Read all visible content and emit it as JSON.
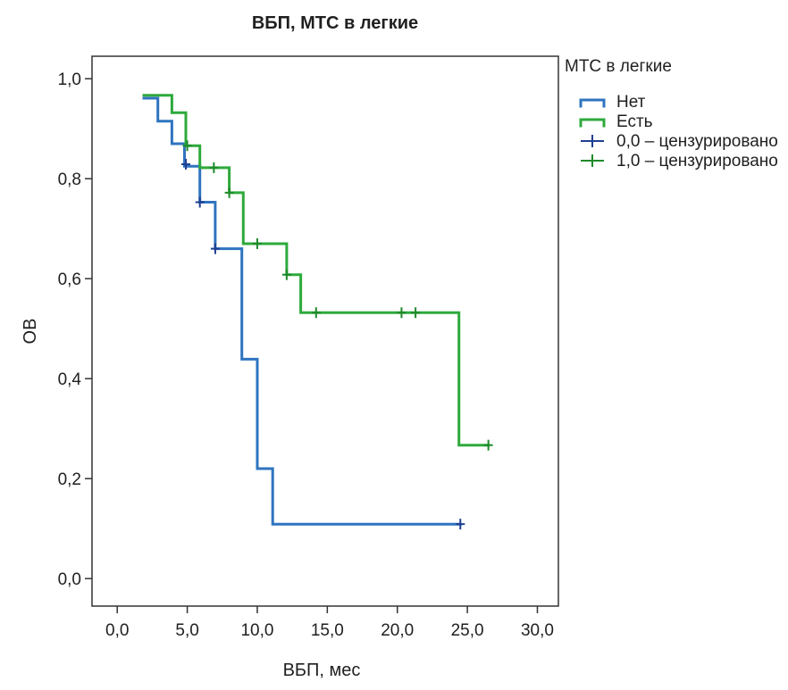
{
  "chart_data": {
    "type": "line",
    "subtype": "kaplan-meier",
    "title": "ВБП, МТС в легкие",
    "xlabel": "ВБП, мес",
    "ylabel": "ОВ",
    "xlim": [
      -1.8,
      31.5
    ],
    "ylim": [
      -0.055,
      1.045
    ],
    "x_ticks": [
      0,
      5,
      10,
      15,
      20,
      25,
      30
    ],
    "y_ticks": [
      0,
      0.2,
      0.4,
      0.6,
      0.8,
      1.0
    ],
    "x_tick_labels": [
      "0,0",
      "5,0",
      "10,0",
      "15,0",
      "20,0",
      "25,0",
      "30,0"
    ],
    "y_tick_labels": [
      "0,0",
      "0,2",
      "0,4",
      "0,6",
      "0,8",
      "1,0"
    ],
    "grid": false,
    "legend": {
      "title": "МТС в легкие",
      "position": "right"
    },
    "series": [
      {
        "name": "Нет",
        "censored_label": "0,0 – цензурировано",
        "color": "#2f74c0",
        "censor_color": "#1f3f91",
        "x": [
          1.9,
          2.9,
          2.9,
          3.9,
          3.9,
          4.8,
          4.8,
          5.9,
          5.9,
          7.0,
          7.0,
          8.9,
          8.9,
          10.0,
          10.0,
          11.1,
          11.1,
          24.5
        ],
        "y": [
          0.961,
          0.961,
          0.915,
          0.915,
          0.87,
          0.87,
          0.825,
          0.825,
          0.753,
          0.753,
          0.66,
          0.66,
          0.439,
          0.439,
          0.22,
          0.22,
          0.109,
          0.109
        ],
        "censored": [
          {
            "x": 4.9,
            "y": 0.829
          },
          {
            "x": 5.9,
            "y": 0.753
          },
          {
            "x": 7.0,
            "y": 0.66
          },
          {
            "x": 24.5,
            "y": 0.109
          }
        ]
      },
      {
        "name": "Есть",
        "censored_label": "1,0 – цензурировано",
        "color": "#2eaa3c",
        "censor_color": "#1f8a2a",
        "x": [
          1.9,
          3.9,
          3.9,
          4.9,
          4.9,
          5.9,
          5.9,
          8.0,
          8.0,
          9.0,
          9.0,
          12.1,
          12.1,
          13.1,
          13.1,
          24.4,
          24.4,
          26.5
        ],
        "y": [
          0.967,
          0.967,
          0.932,
          0.932,
          0.866,
          0.866,
          0.822,
          0.822,
          0.772,
          0.772,
          0.67,
          0.67,
          0.608,
          0.608,
          0.532,
          0.532,
          0.267,
          0.267
        ],
        "censored": [
          {
            "x": 5.0,
            "y": 0.866
          },
          {
            "x": 6.9,
            "y": 0.822
          },
          {
            "x": 8.0,
            "y": 0.772
          },
          {
            "x": 10.0,
            "y": 0.67
          },
          {
            "x": 12.1,
            "y": 0.608
          },
          {
            "x": 14.2,
            "y": 0.532
          },
          {
            "x": 20.3,
            "y": 0.532
          },
          {
            "x": 21.3,
            "y": 0.532
          },
          {
            "x": 26.5,
            "y": 0.267
          }
        ]
      }
    ]
  }
}
